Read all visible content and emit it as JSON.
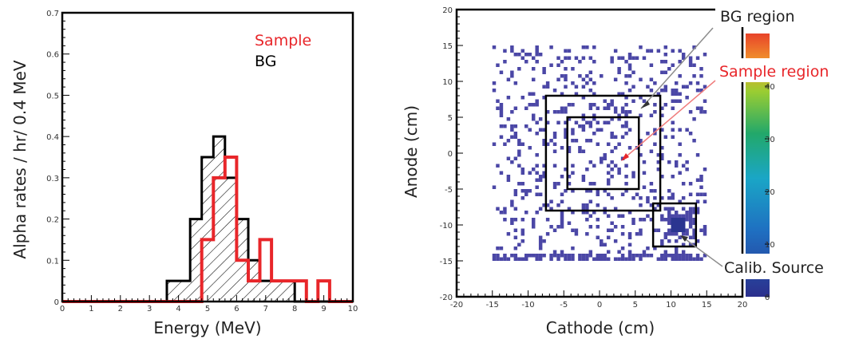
{
  "colors": {
    "sample": "#e8262a",
    "bg": "#000000",
    "pixel": "#4b47a6",
    "axis": "#000000"
  },
  "chart_data": [
    {
      "type": "bar",
      "xlabel": "Energy (MeV)",
      "ylabel": "Alpha rates / hr/ 0.4 MeV",
      "xlim": [
        0,
        10
      ],
      "ylim": [
        0,
        0.7
      ],
      "xticks": [
        "0",
        "1",
        "2",
        "3",
        "4",
        "5",
        "6",
        "7",
        "8",
        "9",
        "10"
      ],
      "yticks": [
        "0",
        "0.1",
        "0.2",
        "0.3",
        "0.4",
        "0.5",
        "0.6",
        "0.7"
      ],
      "bin_width": 0.4,
      "legend_position": "top-right",
      "series": [
        {
          "name": "Sample",
          "color": "#e8262a",
          "bin_edges": [
            0,
            4.8,
            5.2,
            5.6,
            6.0,
            6.4,
            6.8,
            7.2,
            7.6,
            8.0,
            8.4,
            8.8,
            9.2,
            9.6,
            10
          ],
          "values": [
            0,
            0.15,
            0.3,
            0.35,
            0.1,
            0.05,
            0.15,
            0.05,
            0.05,
            0.05,
            0,
            0.05,
            0,
            0
          ]
        },
        {
          "name": "BG",
          "color": "#000000",
          "hatched": true,
          "bin_edges": [
            0,
            3.6,
            4.4,
            4.8,
            5.2,
            5.6,
            6.0,
            6.4,
            6.8,
            7.2,
            8.0,
            10
          ],
          "values": [
            0,
            0.05,
            0.2,
            0.35,
            0.4,
            0.3,
            0.2,
            0.1,
            0.05,
            0.05,
            0
          ]
        }
      ]
    },
    {
      "type": "heatmap",
      "xlabel": "Cathode (cm)",
      "ylabel": "Anode (cm)",
      "xlim": [
        -20,
        20
      ],
      "ylim": [
        -20,
        20
      ],
      "xticks": [
        "-20",
        "-15",
        "-10",
        "-5",
        "0",
        "5",
        "10",
        "15",
        "20"
      ],
      "yticks": [
        "-20",
        "-15",
        "-10",
        "-5",
        "0",
        "5",
        "10",
        "15",
        "20"
      ],
      "colorbar_ticks": [
        "0",
        "10",
        "20",
        "30",
        "40"
      ],
      "regions": [
        {
          "label": "BG region",
          "x": [
            -7.5,
            8.5
          ],
          "y": [
            -8,
            8
          ]
        },
        {
          "label": "Sample region",
          "x": [
            -4.5,
            5.5
          ],
          "y": [
            -5,
            5
          ]
        },
        {
          "label": "Calib. Source",
          "x": [
            7.5,
            13.5
          ],
          "y": [
            -13,
            -7
          ]
        }
      ],
      "annotations": [
        "BG region",
        "Sample region",
        "Calib. Source"
      ],
      "hotspot_center": [
        11,
        -10
      ]
    }
  ]
}
